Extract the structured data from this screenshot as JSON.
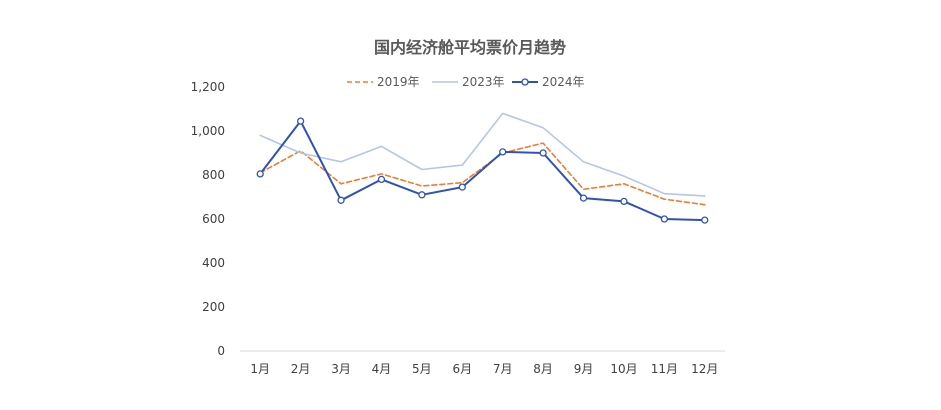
{
  "chart_data": {
    "type": "line",
    "title": "国内经济舱平均票价月趋势",
    "xlabel": "",
    "ylabel": "",
    "categories": [
      "1月",
      "2月",
      "3月",
      "4月",
      "5月",
      "6月",
      "7月",
      "8月",
      "9月",
      "10月",
      "11月",
      "12月"
    ],
    "ylim": [
      0,
      1200
    ],
    "yticks": [
      0,
      200,
      400,
      600,
      800,
      1000,
      1200
    ],
    "ytick_labels": [
      "0",
      "200",
      "400",
      "600",
      "800",
      "1,000",
      "1,200"
    ],
    "grid": false,
    "legend_position": "top",
    "series": [
      {
        "name": "2019年",
        "color": "#ED7D31",
        "style": "dashed",
        "markers": false,
        "values": [
          810,
          910,
          760,
          805,
          750,
          765,
          900,
          945,
          735,
          760,
          690,
          665
        ]
      },
      {
        "name": "2023年",
        "color": "#B4C7E7",
        "style": "solid",
        "markers": false,
        "values": [
          980,
          900,
          860,
          930,
          825,
          845,
          1080,
          1015,
          860,
          795,
          715,
          705
        ]
      },
      {
        "name": "2024年",
        "color": "#2F52B8",
        "style": "solid",
        "markers": true,
        "values": [
          805,
          1045,
          685,
          780,
          710,
          745,
          905,
          900,
          695,
          680,
          600,
          595
        ]
      }
    ]
  }
}
